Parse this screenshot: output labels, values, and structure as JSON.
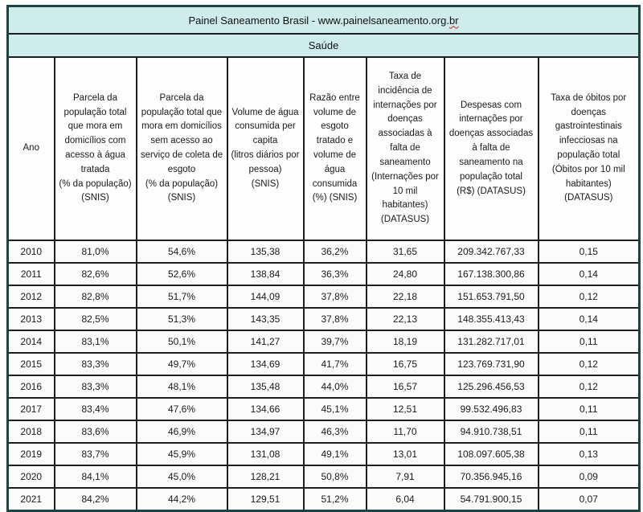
{
  "header": {
    "title_main": "Painel  Saneamento Brasil - www.painelsaneamento.org.",
    "title_tail": "br",
    "section": "Saúde"
  },
  "chart_data": {
    "type": "table",
    "title": "Painel Saneamento Brasil - www.painelsaneamento.org.br",
    "section": "Saúde",
    "columns": [
      "Ano",
      "Parcela da população total que mora em domicílios com acesso à água tratada\n(% da população)\n(SNIS)",
      "Parcela da população total que mora em domicílios sem acesso ao serviço de coleta de esgoto\n(% da população)\n(SNIS)",
      "Volume de água consumida per capita\n(litros diários por pessoa)\n(SNIS)",
      "Razão entre volume de esgoto tratado e volume de água consumida\n(%) (SNIS)",
      "Taxa de incidência de internações por doenças associadas à falta de saneamento\n(Internações por 10 mil habitantes)\n(DATASUS)",
      "Despesas com internações por doenças associadas à falta de saneamento na população total\n(R$) (DATASUS)",
      "Taxa de óbitos por doenças gastrointestinais infecciosas na população total\n(Óbitos por 10 mil habitantes)\n(DATASUS)"
    ],
    "rows": [
      [
        "2010",
        "81,0%",
        "54,6%",
        "135,38",
        "36,2%",
        "31,65",
        "209.342.767,33",
        "0,15"
      ],
      [
        "2011",
        "82,6%",
        "52,6%",
        "138,84",
        "36,3%",
        "24,80",
        "167.138.300,86",
        "0,14"
      ],
      [
        "2012",
        "82,8%",
        "51,7%",
        "144,09",
        "37,8%",
        "22,18",
        "151.653.791,50",
        "0,12"
      ],
      [
        "2013",
        "82,5%",
        "51,3%",
        "143,35",
        "37,8%",
        "22,13",
        "148.355.413,43",
        "0,14"
      ],
      [
        "2014",
        "83,1%",
        "50,1%",
        "141,27",
        "39,7%",
        "18,19",
        "131.282.717,01",
        "0,11"
      ],
      [
        "2015",
        "83,3%",
        "49,7%",
        "134,69",
        "41,7%",
        "16,75",
        "123.769.731,90",
        "0,12"
      ],
      [
        "2016",
        "83,3%",
        "48,1%",
        "135,48",
        "44,0%",
        "16,57",
        "125.296.456,53",
        "0,12"
      ],
      [
        "2017",
        "83,4%",
        "47,6%",
        "134,66",
        "45,1%",
        "12,51",
        "99.532.496,83",
        "0,11"
      ],
      [
        "2018",
        "83,6%",
        "46,9%",
        "134,97",
        "46,3%",
        "11,70",
        "94.910.738,51",
        "0,11"
      ],
      [
        "2019",
        "83,7%",
        "45,9%",
        "131,08",
        "49,1%",
        "13,01",
        "108.097.605,38",
        "0,13"
      ],
      [
        "2020",
        "84,1%",
        "45,0%",
        "128,21",
        "50,8%",
        "7,91",
        "70.356.945,16",
        "0,09"
      ],
      [
        "2021",
        "84,2%",
        "44,2%",
        "129,51",
        "51,2%",
        "6,04",
        "54.791.900,15",
        "0,07"
      ]
    ]
  },
  "colors": {
    "band_teal": "#cdecea",
    "outer_border": "#1c4444",
    "grid_line": "#1f1f1f",
    "text": "#1a1a1a",
    "spellcheck_underline": "#cc2222"
  }
}
